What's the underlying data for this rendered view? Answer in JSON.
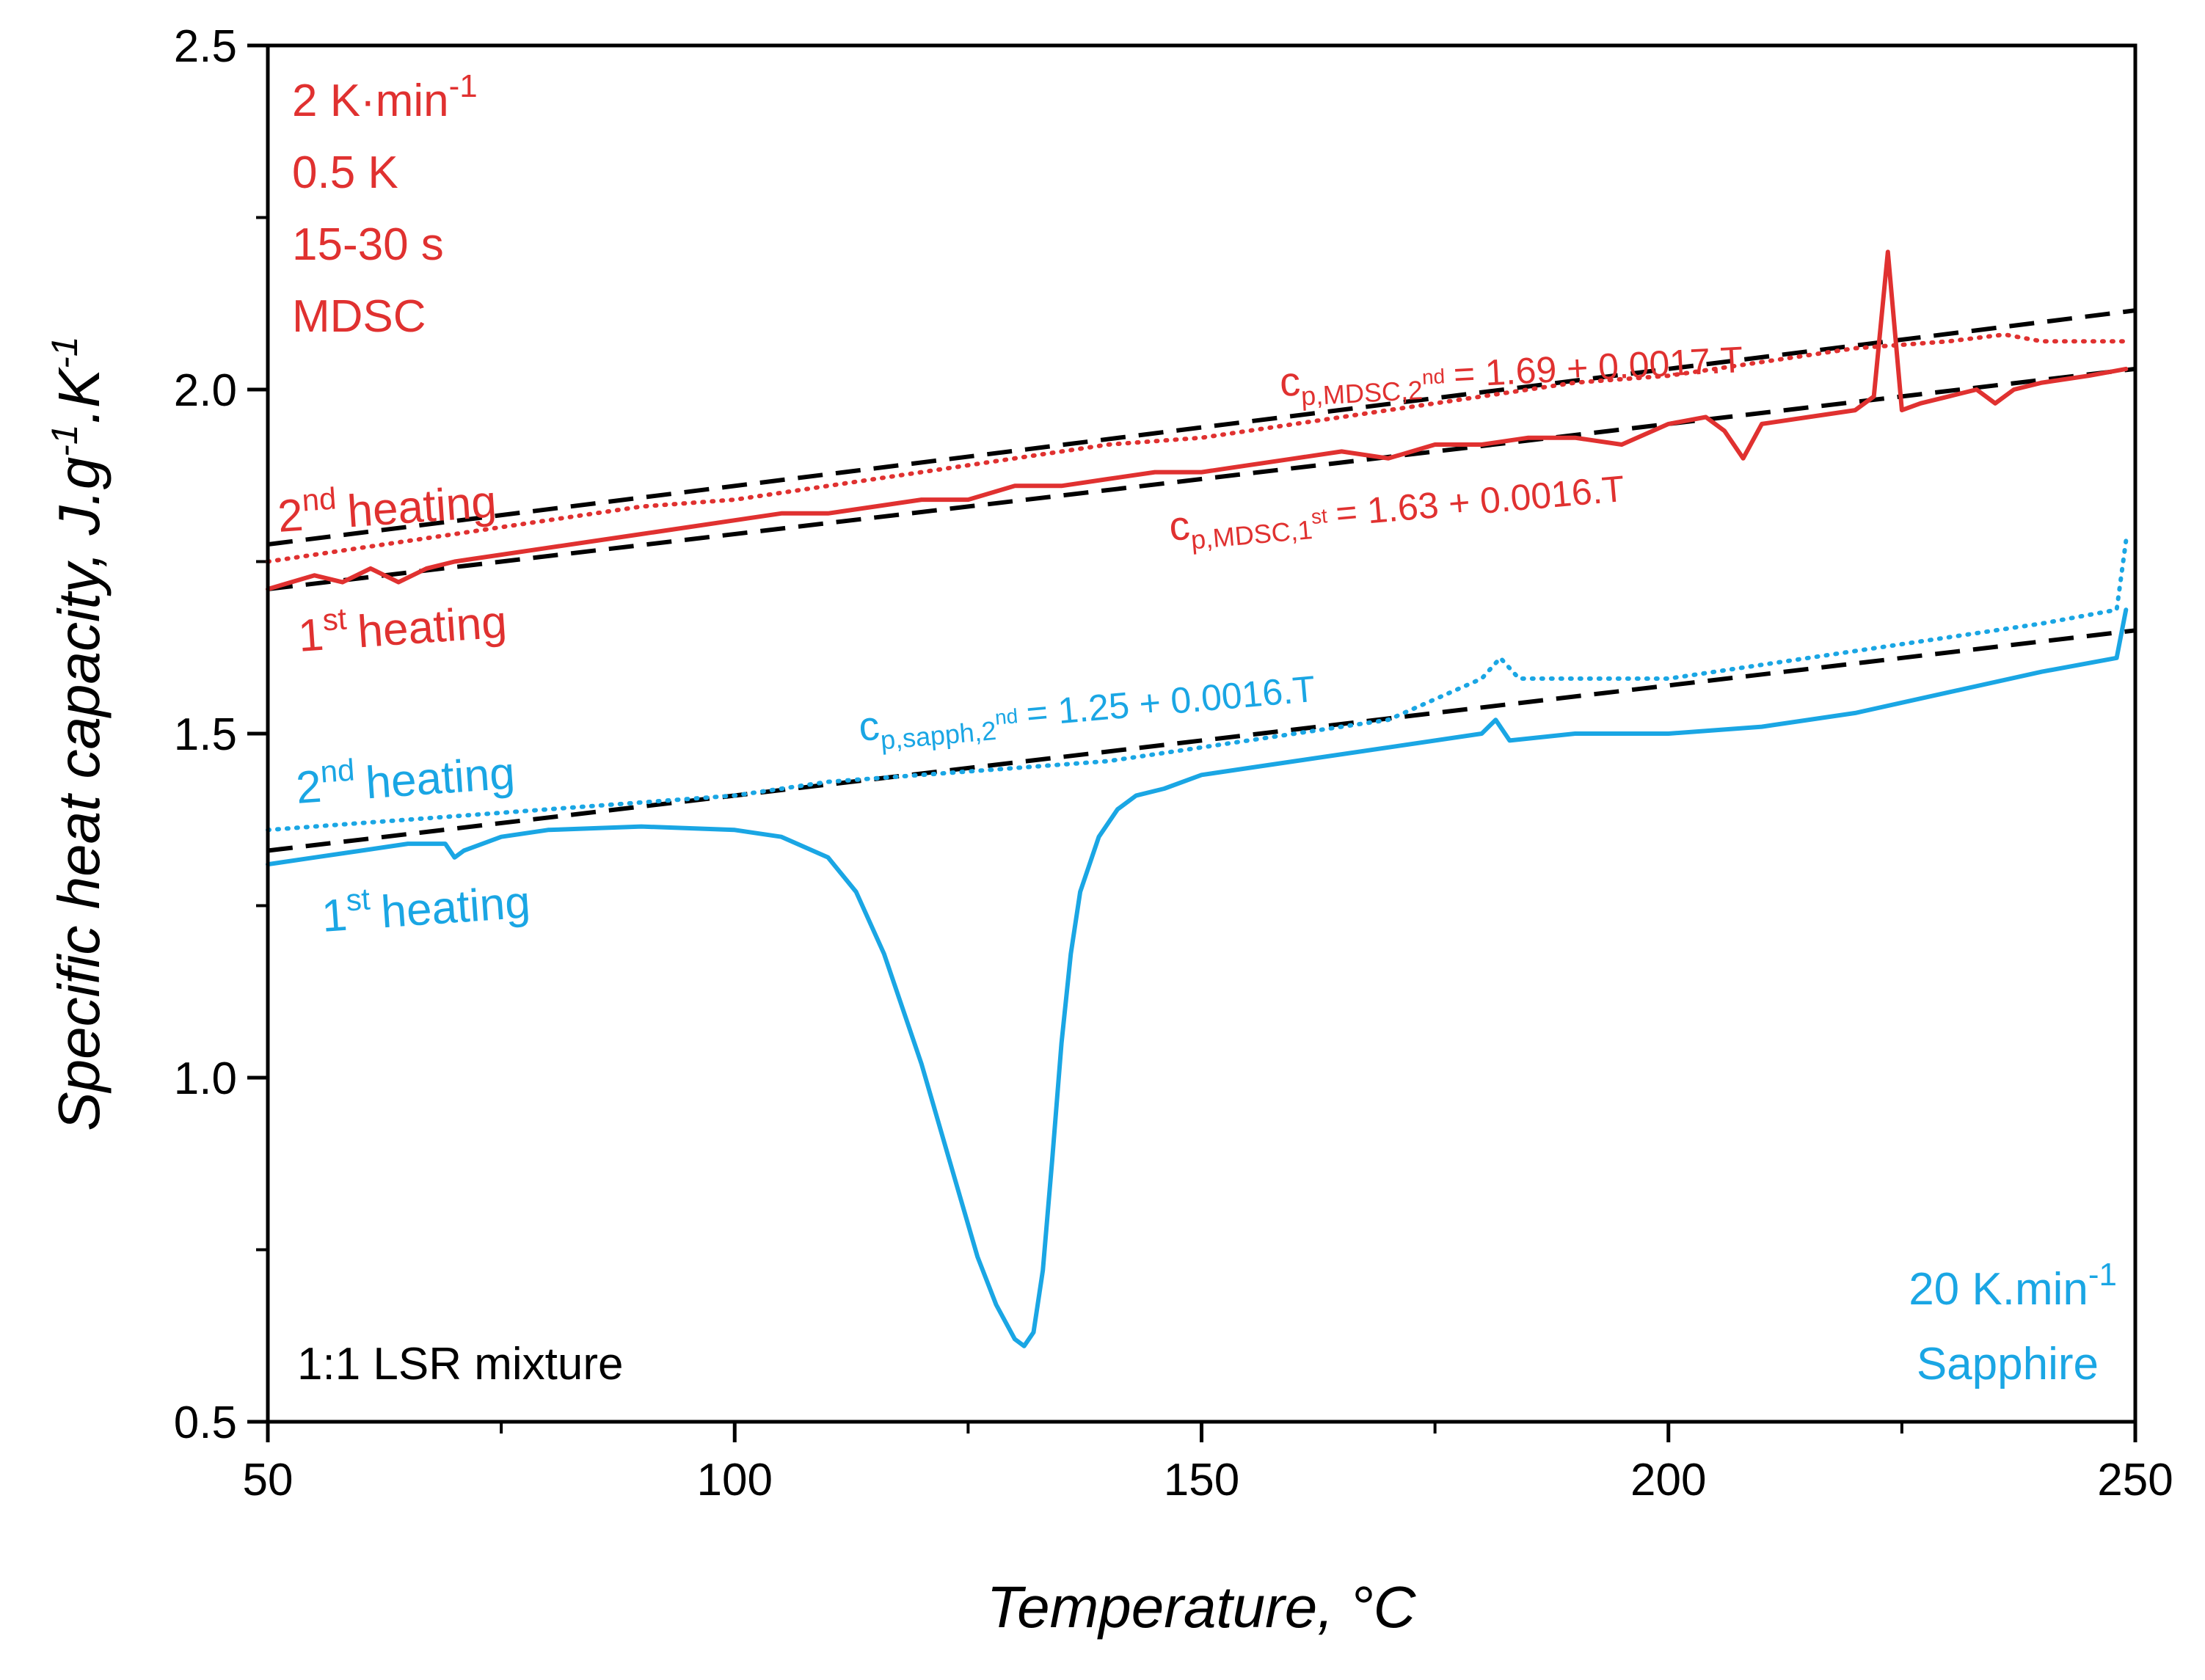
{
  "chart_data": {
    "type": "line",
    "xlabel": "Temperature, °C",
    "ylabel": "Specific heat capacity, J.g⁻¹.K⁻¹",
    "xlim": [
      50,
      250
    ],
    "ylim": [
      0.5,
      2.5
    ],
    "x_ticks": [
      50,
      100,
      150,
      200,
      250
    ],
    "y_ticks": [
      0.5,
      1.0,
      1.5,
      2.0,
      2.5
    ],
    "x_ticks_labels": [
      "50",
      "100",
      "150",
      "200",
      "250"
    ],
    "y_ticks_labels": [
      "0.5",
      "1.0",
      "1.5",
      "2.0",
      "2.5"
    ],
    "grid": false,
    "colors": {
      "mdsc": "#e03130",
      "sapphire": "#1aa6e4",
      "fit": "#000000"
    },
    "series": [
      {
        "name": "MDSC 2nd heating",
        "style": "dotted",
        "color": "#e03130",
        "x": [
          50,
          60,
          70,
          80,
          90,
          100,
          110,
          120,
          130,
          140,
          150,
          160,
          170,
          175,
          180,
          190,
          200,
          210,
          220,
          230,
          236,
          240,
          249
        ],
        "y": [
          1.75,
          1.77,
          1.79,
          1.81,
          1.83,
          1.84,
          1.86,
          1.88,
          1.9,
          1.92,
          1.93,
          1.95,
          1.97,
          1.98,
          1.99,
          2.01,
          2.02,
          2.04,
          2.06,
          2.07,
          2.08,
          2.07,
          2.07
        ]
      },
      {
        "name": "MDSC 1st heating",
        "style": "solid",
        "color": "#e03130",
        "x": [
          50,
          55,
          58,
          61,
          64,
          67,
          70,
          75,
          80,
          85,
          90,
          95,
          100,
          105,
          110,
          115,
          120,
          125,
          130,
          135,
          140,
          145,
          150,
          155,
          160,
          165,
          170,
          175,
          180,
          185,
          190,
          195,
          200,
          204,
          206,
          208,
          210,
          215,
          220,
          222,
          223.5,
          225,
          227,
          230,
          233,
          235,
          237,
          240,
          245,
          249
        ],
        "y": [
          1.71,
          1.73,
          1.72,
          1.74,
          1.72,
          1.74,
          1.75,
          1.76,
          1.77,
          1.78,
          1.79,
          1.8,
          1.81,
          1.82,
          1.82,
          1.83,
          1.84,
          1.84,
          1.86,
          1.86,
          1.87,
          1.88,
          1.88,
          1.89,
          1.9,
          1.91,
          1.9,
          1.92,
          1.92,
          1.93,
          1.93,
          1.92,
          1.95,
          1.96,
          1.94,
          1.9,
          1.95,
          1.96,
          1.97,
          1.99,
          2.2,
          1.97,
          1.98,
          1.99,
          2.0,
          1.98,
          2.0,
          2.01,
          2.02,
          2.03
        ]
      },
      {
        "name": "Sapphire 2nd heating",
        "style": "dotted",
        "color": "#1aa6e4",
        "x": [
          50,
          60,
          70,
          80,
          90,
          100,
          110,
          120,
          130,
          140,
          150,
          160,
          170,
          180,
          182,
          184,
          190,
          200,
          210,
          220,
          230,
          240,
          248,
          249
        ],
        "y": [
          1.36,
          1.37,
          1.38,
          1.39,
          1.4,
          1.41,
          1.43,
          1.44,
          1.45,
          1.46,
          1.48,
          1.5,
          1.52,
          1.58,
          1.61,
          1.58,
          1.58,
          1.58,
          1.6,
          1.62,
          1.64,
          1.66,
          1.68,
          1.78
        ]
      },
      {
        "name": "Sapphire 1st heating",
        "style": "solid",
        "color": "#1aa6e4",
        "x": [
          50,
          55,
          60,
          65,
          69,
          70,
          71,
          75,
          80,
          90,
          100,
          105,
          110,
          113,
          116,
          120,
          123,
          126,
          128,
          130,
          131,
          132,
          133,
          134,
          135,
          136,
          137,
          139,
          141,
          143,
          146,
          150,
          160,
          170,
          180,
          181.5,
          183,
          190,
          200,
          210,
          220,
          230,
          240,
          248,
          249
        ],
        "y": [
          1.31,
          1.32,
          1.33,
          1.34,
          1.34,
          1.32,
          1.33,
          1.35,
          1.36,
          1.365,
          1.36,
          1.35,
          1.32,
          1.27,
          1.18,
          1.02,
          0.88,
          0.74,
          0.67,
          0.62,
          0.61,
          0.63,
          0.72,
          0.88,
          1.05,
          1.18,
          1.27,
          1.35,
          1.39,
          1.41,
          1.42,
          1.44,
          1.46,
          1.48,
          1.5,
          1.52,
          1.49,
          1.5,
          1.5,
          1.51,
          1.53,
          1.56,
          1.59,
          1.61,
          1.68
        ]
      }
    ],
    "fits": [
      {
        "intercept": 1.69,
        "slope": 0.0017
      },
      {
        "intercept": 1.63,
        "slope": 0.0016
      },
      {
        "intercept": 1.25,
        "slope": 0.0016
      }
    ]
  },
  "annotations": {
    "mdsc_rate": "2 K·min",
    "mdsc_rate_sup": "-1",
    "mdsc_amplitude": "0.5 K",
    "mdsc_period": "15-30 s",
    "mdsc_method": "MDSC",
    "mdsc_2nd_heating": "heating",
    "mdsc_2nd_prefix": "2",
    "mdsc_2nd_sup": "nd",
    "mdsc_1st_heating": "heating",
    "mdsc_1st_prefix": "1",
    "mdsc_1st_sup": "st",
    "sapph_2nd_heating": "heating",
    "sapph_2nd_prefix": "2",
    "sapph_2nd_sup": "nd",
    "sapph_1st_heating": "heating",
    "sapph_1st_prefix": "1",
    "sapph_1st_sup": "st",
    "eq_mdsc_2nd": "= 1.69 + 0.0017.T",
    "eq_mdsc_2nd_sub": "p,MDSC,2",
    "eq_mdsc_2nd_subsup": "nd",
    "eq_mdsc_1st": "= 1.63 + 0.0016.T",
    "eq_mdsc_1st_sub": "p,MDSC,1",
    "eq_mdsc_1st_subsup": "st",
    "eq_sapph": "= 1.25 + 0.0016.T",
    "eq_sapph_sub": "p,sapph,2",
    "eq_sapph_subsup": "nd",
    "eq_c": "c",
    "sapph_rate": "20 K.min",
    "sapph_rate_sup": "-1",
    "sapph_method": "Sapphire",
    "sample": "1:1 LSR mixture"
  }
}
